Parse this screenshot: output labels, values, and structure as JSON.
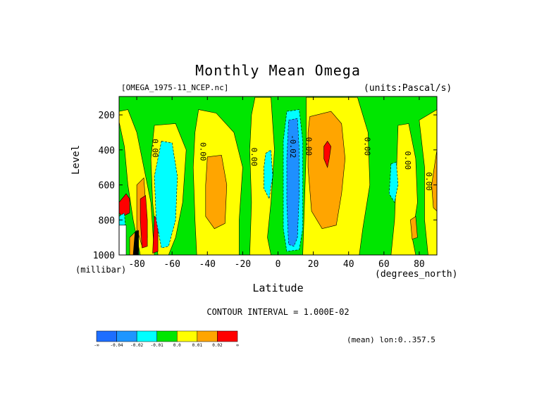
{
  "chart_data": {
    "type": "heatmap",
    "title": "Monthly Mean Omega",
    "dataset": "[OMEGA_1975-11_NCEP.nc]",
    "units": "(units:Pascal/s)",
    "xlabel": "Latitude",
    "ylabel": "Level",
    "x_units": "(degrees_north)",
    "y_units": "(millibar)",
    "xlim": [
      -90,
      90
    ],
    "ylim": [
      1000,
      100
    ],
    "x_ticks": [
      -80,
      -60,
      -40,
      -20,
      0,
      20,
      40,
      60,
      80
    ],
    "y_ticks": [
      200,
      400,
      600,
      800,
      1000
    ],
    "contour_interval_text": "CONTOUR INTERVAL = 1.000E-02",
    "mean_text": "(mean) lon:0..357.5",
    "contour_labels": [
      {
        "text": "0.00",
        "lat": -71,
        "level": 390
      },
      {
        "text": "0.00",
        "lat": -44,
        "level": 410
      },
      {
        "text": "0.00",
        "lat": -15,
        "level": 440
      },
      {
        "text": "-0.02",
        "lat": 7,
        "level": 380
      },
      {
        "text": "0.00",
        "lat": 16,
        "level": 380
      },
      {
        "text": "0.00",
        "lat": 49,
        "level": 380
      },
      {
        "text": "0.00",
        "lat": 72,
        "level": 460
      },
      {
        "text": "0.00",
        "lat": 84,
        "level": 580
      }
    ],
    "regions": [
      {
        "class": "c0_0",
        "color": "#ffff00",
        "pts": [
          [
            -90,
            240
          ],
          [
            -87,
            380
          ],
          [
            -85,
            600
          ],
          [
            -82,
            800
          ],
          [
            -78,
            1000
          ],
          [
            -70,
            1000
          ],
          [
            -72,
            700
          ],
          [
            -76,
            500
          ],
          [
            -80,
            300
          ],
          [
            -85,
            170
          ],
          [
            -90,
            180
          ]
        ]
      },
      {
        "class": "c0_0",
        "color": "#ffff00",
        "pts": [
          [
            -70,
            260
          ],
          [
            -58,
            250
          ],
          [
            -52,
            400
          ],
          [
            -54,
            700
          ],
          [
            -58,
            900
          ],
          [
            -62,
            1000
          ],
          [
            -68,
            1000
          ],
          [
            -71,
            700
          ],
          [
            -72,
            450
          ]
        ]
      },
      {
        "class": "c0_0",
        "color": "#ffff00",
        "pts": [
          [
            -45,
            170
          ],
          [
            -35,
            190
          ],
          [
            -25,
            300
          ],
          [
            -20,
            500
          ],
          [
            -22,
            800
          ],
          [
            -22,
            1000
          ],
          [
            -46,
            1000
          ],
          [
            -47,
            800
          ],
          [
            -48,
            500
          ],
          [
            -47,
            300
          ]
        ]
      },
      {
        "class": "c0_0",
        "color": "#ffff00",
        "pts": [
          [
            -13,
            100
          ],
          [
            -4,
            100
          ],
          [
            -2,
            400
          ],
          [
            -4,
            700
          ],
          [
            -6,
            900
          ],
          [
            -4,
            1000
          ],
          [
            -16,
            1000
          ],
          [
            -15,
            700
          ],
          [
            -16,
            400
          ],
          [
            -15,
            200
          ]
        ]
      },
      {
        "class": "c0_0",
        "color": "#ffff00",
        "pts": [
          [
            16,
            100
          ],
          [
            45,
            100
          ],
          [
            51,
            300
          ],
          [
            52,
            600
          ],
          [
            48,
            850
          ],
          [
            46,
            1000
          ],
          [
            14,
            1000
          ],
          [
            15,
            700
          ],
          [
            16,
            400
          ]
        ]
      },
      {
        "class": "c0_0",
        "color": "#ffff00",
        "pts": [
          [
            68,
            260
          ],
          [
            74,
            250
          ],
          [
            78,
            450
          ],
          [
            79,
            700
          ],
          [
            76,
            900
          ],
          [
            78,
            1000
          ],
          [
            64,
            1000
          ],
          [
            66,
            800
          ],
          [
            67,
            550
          ]
        ]
      },
      {
        "class": "c0_0",
        "color": "#ffff00",
        "pts": [
          [
            80,
            230
          ],
          [
            90,
            170
          ],
          [
            90,
            1000
          ],
          [
            85,
            1000
          ],
          [
            83,
            800
          ],
          [
            83,
            500
          ]
        ]
      },
      {
        "class": "c0_01",
        "color": "#ffa500",
        "pts": [
          [
            -40,
            440
          ],
          [
            -32,
            430
          ],
          [
            -29,
            600
          ],
          [
            -30,
            820
          ],
          [
            -36,
            850
          ],
          [
            -41,
            780
          ],
          [
            -41,
            600
          ]
        ]
      },
      {
        "class": "c0_01",
        "color": "#ffa500",
        "pts": [
          [
            18,
            210
          ],
          [
            30,
            180
          ],
          [
            36,
            250
          ],
          [
            38,
            450
          ],
          [
            36,
            650
          ],
          [
            33,
            830
          ],
          [
            25,
            850
          ],
          [
            19,
            750
          ],
          [
            17,
            500
          ],
          [
            17,
            300
          ]
        ]
      },
      {
        "class": "c0_01",
        "color": "#ffa500",
        "pts": [
          [
            75,
            800
          ],
          [
            78,
            780
          ],
          [
            79,
            900
          ],
          [
            76,
            910
          ]
        ]
      },
      {
        "class": "c0_01",
        "color": "#ffa500",
        "pts": [
          [
            87,
            600
          ],
          [
            90,
            400
          ],
          [
            90,
            750
          ],
          [
            88,
            730
          ]
        ]
      },
      {
        "class": "c0_01",
        "color": "#ffa500",
        "pts": [
          [
            -80,
            600
          ],
          [
            -76,
            560
          ],
          [
            -75,
            700
          ],
          [
            -74,
            900
          ],
          [
            -77,
            950
          ],
          [
            -80,
            850
          ]
        ]
      },
      {
        "class": "c0_01",
        "color": "#ffa500",
        "pts": [
          [
            -84,
            900
          ],
          [
            -80,
            860
          ],
          [
            -79,
            1000
          ],
          [
            -84,
            1000
          ]
        ]
      },
      {
        "class": "c0_02",
        "color": "#ff0000",
        "pts": [
          [
            28,
            350
          ],
          [
            30,
            380
          ],
          [
            29,
            450
          ],
          [
            28,
            500
          ],
          [
            26,
            450
          ],
          [
            26,
            380
          ]
        ]
      },
      {
        "class": "c0_02",
        "color": "#ff0000",
        "pts": [
          [
            -90,
            700
          ],
          [
            -86,
            650
          ],
          [
            -84,
            680
          ],
          [
            -84,
            760
          ],
          [
            -88,
            780
          ],
          [
            -90,
            760
          ]
        ]
      },
      {
        "class": "c0_02",
        "color": "#ff0000",
        "pts": [
          [
            -78,
            680
          ],
          [
            -75,
            660
          ],
          [
            -74,
            800
          ],
          [
            -74,
            950
          ],
          [
            -77,
            960
          ],
          [
            -78,
            800
          ]
        ]
      },
      {
        "class": "c0_02",
        "color": "#ff0000",
        "pts": [
          [
            -70,
            780
          ],
          [
            -68,
            790
          ],
          [
            -68,
            980
          ],
          [
            -71,
            990
          ]
        ]
      },
      {
        "class": "cm0_01",
        "color": "#00ffff",
        "pts": [
          [
            -66,
            350
          ],
          [
            -60,
            360
          ],
          [
            -57,
            550
          ],
          [
            -58,
            800
          ],
          [
            -62,
            950
          ],
          [
            -66,
            960
          ],
          [
            -69,
            800
          ],
          [
            -70,
            550
          ]
        ]
      },
      {
        "class": "cm0_01",
        "color": "#00ffff",
        "pts": [
          [
            -7,
            420
          ],
          [
            -4,
            400
          ],
          [
            -3,
            550
          ],
          [
            -5,
            680
          ],
          [
            -8,
            620
          ],
          [
            -8,
            500
          ]
        ]
      },
      {
        "class": "cm0_01",
        "color": "#00ffff",
        "pts": [
          [
            5,
            180
          ],
          [
            12,
            170
          ],
          [
            14,
            350
          ],
          [
            14,
            600
          ],
          [
            14,
            850
          ],
          [
            12,
            970
          ],
          [
            5,
            980
          ],
          [
            3,
            850
          ],
          [
            3,
            600
          ],
          [
            3,
            350
          ]
        ]
      },
      {
        "class": "cm0_01",
        "color": "#00ffff",
        "pts": [
          [
            64,
            480
          ],
          [
            67,
            470
          ],
          [
            68,
            600
          ],
          [
            66,
            700
          ],
          [
            63,
            650
          ]
        ]
      },
      {
        "class": "cm0_02",
        "color": "#1e90ff",
        "pts": [
          [
            6,
            230
          ],
          [
            11,
            220
          ],
          [
            12,
            400
          ],
          [
            12,
            650
          ],
          [
            11,
            900
          ],
          [
            9,
            950
          ],
          [
            6,
            940
          ],
          [
            5,
            700
          ],
          [
            5,
            450
          ]
        ]
      },
      {
        "class": "cm0_01",
        "color": "#00ffff",
        "pts": [
          [
            -90,
            780
          ],
          [
            -87,
            760
          ],
          [
            -86,
            900
          ],
          [
            -88,
            1000
          ],
          [
            -90,
            1000
          ]
        ]
      },
      {
        "class": "white",
        "color": "#ffffff",
        "pts": [
          [
            -90,
            830
          ],
          [
            -86,
            830
          ],
          [
            -86,
            1000
          ],
          [
            -90,
            1000
          ]
        ]
      },
      {
        "class": "black",
        "color": "#000000",
        "pts": [
          [
            -81,
            870
          ],
          [
            -79,
            860
          ],
          [
            -79,
            1000
          ],
          [
            -82,
            1000
          ]
        ]
      }
    ],
    "colorbar": {
      "colors": [
        "#1e6eff",
        "#1e96ff",
        "#00ffff",
        "#00e600",
        "#ffff00",
        "#ffa500",
        "#ff0000"
      ],
      "labels": [
        "-∞",
        "-0.04",
        "-0.02",
        "-0.01",
        "0.0",
        "0.01",
        "0.02",
        "∞"
      ]
    }
  }
}
